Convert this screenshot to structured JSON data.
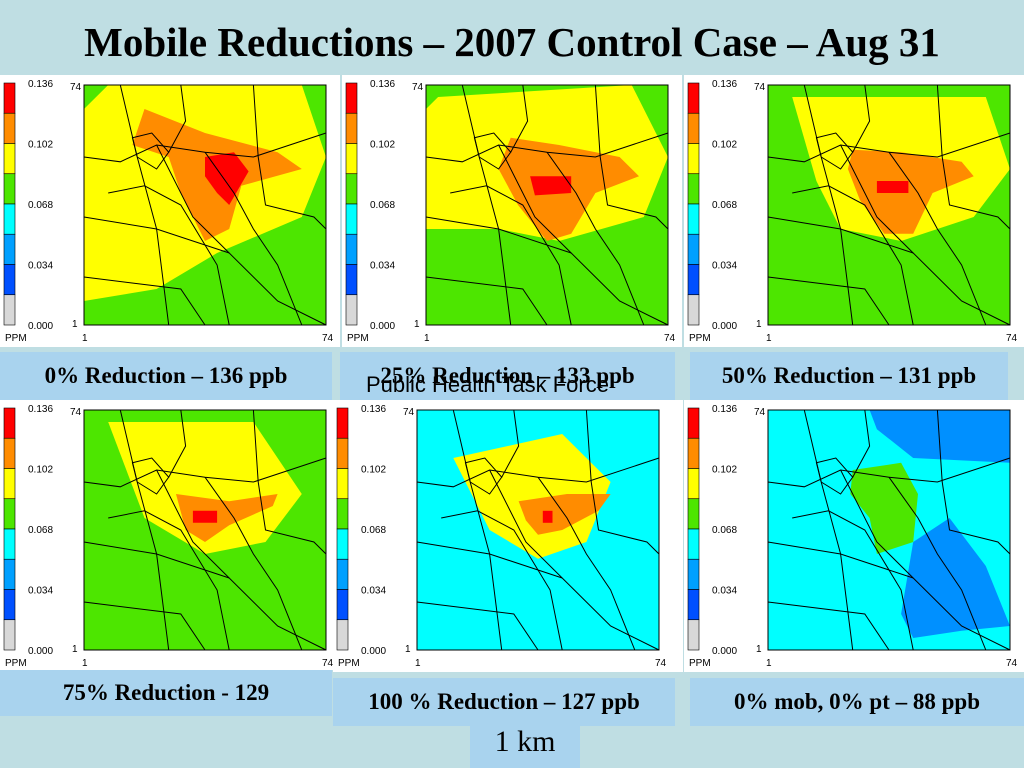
{
  "title": "Mobile Reductions – 2007 Control Case – Aug 31",
  "legend": {
    "colors": [
      "#ff0000",
      "#ff8c00",
      "#ffff00",
      "#4de600",
      "#00ffff",
      "#00a0ff",
      "#0050ff",
      "#d8d8d8"
    ],
    "ticks": [
      "0.136",
      "0.102",
      "0.068",
      "0.034",
      "0.000"
    ],
    "unit": "PPM",
    "axis_min": "1",
    "axis_max": "74"
  },
  "panels": [
    {
      "caption": "0% Reduction – 136 ppb",
      "level": 5
    },
    {
      "caption": "25% Reduction – 133 ppb",
      "level": 4
    },
    {
      "caption": "50% Reduction – 131 ppb",
      "level": 3
    },
    {
      "caption": "75% Reduction - 129",
      "level": 2
    },
    {
      "caption": "100 % Reduction – 127 ppb",
      "level": 1
    },
    {
      "caption": "0% mob, 0% pt – 88 ppb",
      "level": 0
    }
  ],
  "overlay_text": "Public Health Task Force",
  "scale_label": "1 km"
}
